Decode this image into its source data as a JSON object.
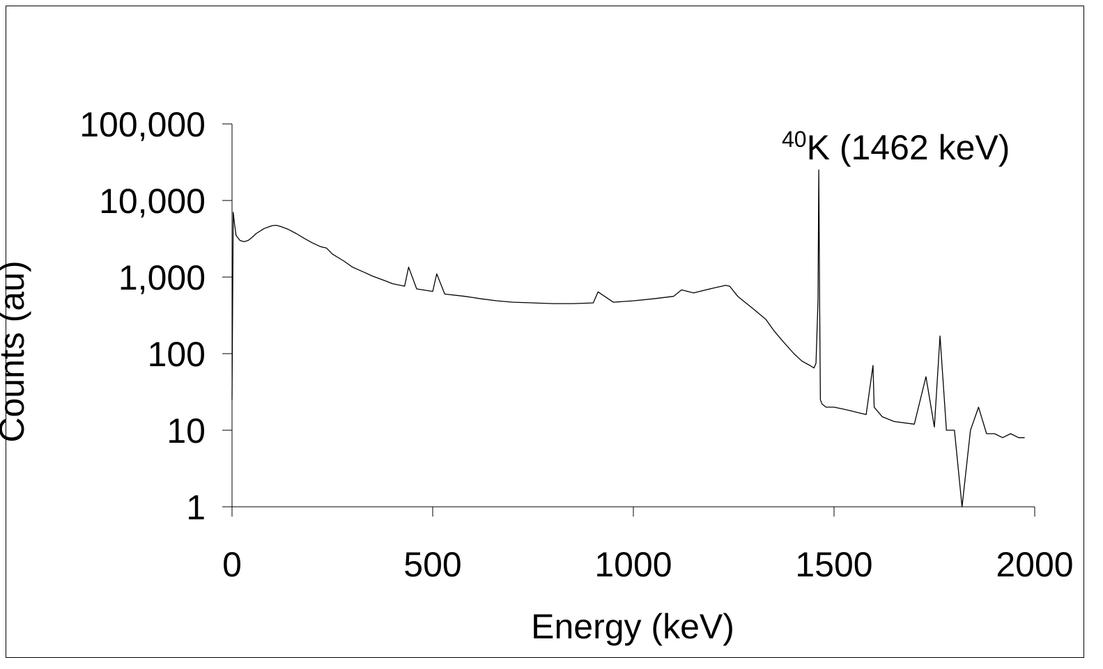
{
  "chart_data": {
    "type": "line",
    "title": "",
    "xlabel": "Energy (keV)",
    "ylabel": "Counts (au)",
    "x_scale": "linear",
    "y_scale": "log",
    "xlim": [
      0,
      2000
    ],
    "ylim": [
      1,
      100000
    ],
    "x_ticks": [
      {
        "value": 0,
        "label": "0"
      },
      {
        "value": 500,
        "label": "500"
      },
      {
        "value": 1000,
        "label": "1000"
      },
      {
        "value": 1500,
        "label": "1500"
      },
      {
        "value": 2000,
        "label": "2000"
      }
    ],
    "y_ticks": [
      {
        "value": 1,
        "label": "1"
      },
      {
        "value": 10,
        "label": "10"
      },
      {
        "value": 100,
        "label": "100"
      },
      {
        "value": 1000,
        "label": "1,000"
      },
      {
        "value": 10000,
        "label": "10,000"
      },
      {
        "value": 100000,
        "label": "100,000"
      }
    ],
    "grid": false,
    "legend": "none",
    "series": [
      {
        "color": "#000000",
        "x": [
          0,
          3,
          6,
          10,
          20,
          30,
          40,
          50,
          60,
          80,
          100,
          110,
          120,
          140,
          160,
          180,
          200,
          220,
          235,
          250,
          280,
          300,
          330,
          350,
          380,
          400,
          430,
          440,
          460,
          500,
          510,
          530,
          580,
          600,
          620,
          660,
          700,
          750,
          800,
          850,
          900,
          912,
          950,
          1000,
          1050,
          1100,
          1120,
          1150,
          1200,
          1230,
          1240,
          1260,
          1300,
          1330,
          1350,
          1370,
          1400,
          1420,
          1440,
          1450,
          1455,
          1460,
          1462,
          1464,
          1466,
          1470,
          1480,
          1500,
          1520,
          1540,
          1560,
          1580,
          1597,
          1600,
          1620,
          1650,
          1700,
          1729,
          1750,
          1764,
          1780,
          1800,
          1819,
          1840,
          1860,
          1880,
          1900,
          1920,
          1940,
          1960,
          1975
        ],
        "y": [
          25,
          7000,
          5000,
          3500,
          3000,
          2900,
          3000,
          3300,
          3700,
          4300,
          4700,
          4750,
          4600,
          4200,
          3700,
          3200,
          2800,
          2500,
          2400,
          2000,
          1600,
          1350,
          1150,
          1030,
          900,
          820,
          760,
          1350,
          700,
          650,
          1100,
          600,
          560,
          540,
          520,
          490,
          470,
          460,
          450,
          450,
          460,
          640,
          470,
          490,
          520,
          560,
          680,
          620,
          720,
          780,
          760,
          560,
          380,
          280,
          200,
          150,
          100,
          80,
          70,
          65,
          75,
          500,
          25000,
          500,
          25,
          22,
          20,
          20,
          19,
          18,
          17,
          16,
          70,
          20,
          15,
          13,
          12,
          50,
          11,
          170,
          10,
          10,
          1,
          10,
          20,
          9,
          9,
          8,
          9,
          8,
          8
        ]
      }
    ],
    "annotations": [
      {
        "sup": "40",
        "text": "K (1462 keV)",
        "x": 1462,
        "y": 25000
      }
    ]
  }
}
